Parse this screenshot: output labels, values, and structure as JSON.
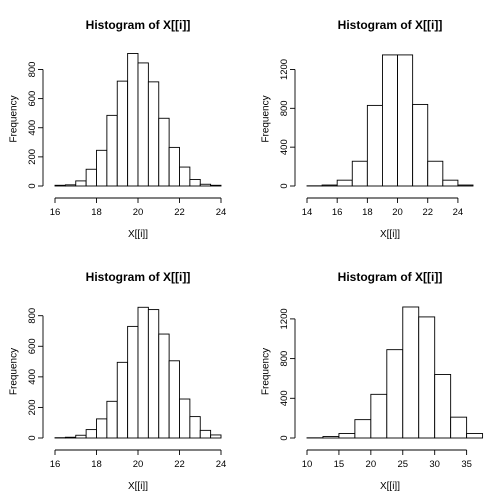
{
  "chart_data": [
    {
      "type": "bar",
      "title": "Histogram of X[[i]]",
      "xlabel": "X[[i]]",
      "ylabel": "Frequency",
      "bin_edges": [
        16,
        16.5,
        17,
        17.5,
        18,
        18.5,
        19,
        19.5,
        20,
        20.5,
        21,
        21.5,
        22,
        22.5,
        23,
        23.5,
        24
      ],
      "values": [
        5,
        8,
        35,
        115,
        245,
        485,
        720,
        910,
        845,
        715,
        465,
        265,
        130,
        45,
        12,
        5
      ],
      "xlim": [
        16,
        24
      ],
      "ylim": [
        0,
        920
      ],
      "xticks": [
        16,
        18,
        20,
        22,
        24
      ],
      "yticks": [
        0,
        200,
        400,
        600,
        800
      ],
      "grid": false
    },
    {
      "type": "bar",
      "title": "Histogram of X[[i]]",
      "xlabel": "X[[i]]",
      "ylabel": "Frequency",
      "bin_edges": [
        14,
        15,
        16,
        17,
        18,
        19,
        20,
        21,
        22,
        23,
        24,
        25
      ],
      "values": [
        2,
        10,
        60,
        255,
        830,
        1350,
        1350,
        840,
        255,
        60,
        10
      ],
      "xlim": [
        14,
        25
      ],
      "ylim": [
        0,
        1380
      ],
      "xticks": [
        14,
        16,
        18,
        20,
        22,
        24
      ],
      "yticks": [
        0,
        400,
        800,
        1200
      ],
      "grid": false
    },
    {
      "type": "bar",
      "title": "Histogram of X[[i]]",
      "xlabel": "X[[i]]",
      "ylabel": "Frequency",
      "bin_edges": [
        16,
        16.5,
        17,
        17.5,
        18,
        18.5,
        19,
        19.5,
        20,
        20.5,
        21,
        21.5,
        22,
        22.5,
        23,
        23.5,
        24
      ],
      "values": [
        2,
        5,
        18,
        55,
        125,
        240,
        495,
        730,
        855,
        840,
        680,
        505,
        255,
        140,
        50,
        20
      ],
      "xlim": [
        16,
        24
      ],
      "ylim": [
        0,
        870
      ],
      "xticks": [
        16,
        18,
        20,
        22,
        24
      ],
      "yticks": [
        0,
        200,
        400,
        600,
        800
      ],
      "grid": false
    },
    {
      "type": "bar",
      "title": "Histogram of X[[i]]",
      "xlabel": "X[[i]]",
      "ylabel": "Frequency",
      "bin_edges": [
        10,
        12.5,
        15,
        17.5,
        20,
        22.5,
        25,
        27.5,
        30,
        32.5,
        35,
        37.5
      ],
      "values": [
        2,
        15,
        45,
        185,
        440,
        890,
        1320,
        1220,
        640,
        210,
        45
      ],
      "xlim": [
        10,
        36
      ],
      "ylim": [
        0,
        1340
      ],
      "xticks": [
        10,
        15,
        20,
        25,
        30,
        35
      ],
      "yticks": [
        0,
        400,
        800,
        1200
      ],
      "grid": false
    }
  ]
}
